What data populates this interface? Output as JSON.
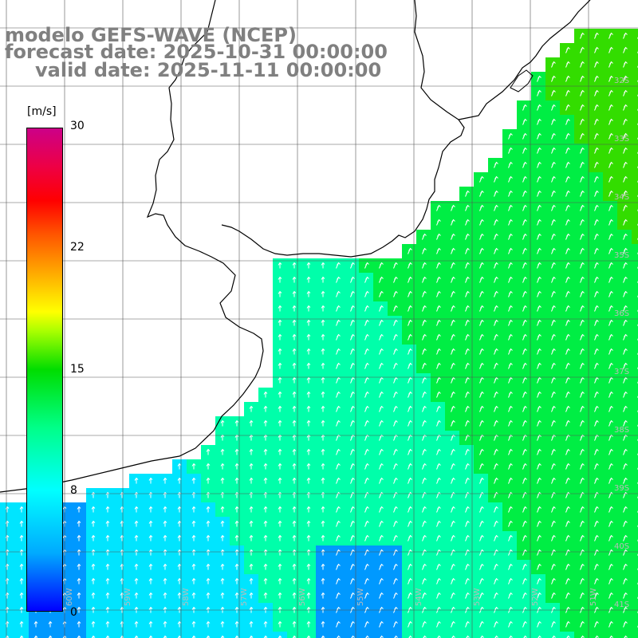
{
  "title": {
    "line1": "modelo GEFS-WAVE (NCEP)",
    "line2": "forecast date: 2025-10-31 00:00:00",
    "line3": "valid date: 2025-11-11 00:00:00"
  },
  "colorbar": {
    "unit": "[m/s]",
    "min": 0,
    "max": 30,
    "ticks": [
      "30",
      "22",
      "15",
      "8",
      "0"
    ]
  },
  "map": {
    "lon_labels": [
      "60W",
      "59W",
      "58W",
      "57W",
      "56W",
      "55W",
      "54W",
      "53W",
      "52W",
      "51W"
    ],
    "lat_labels": [
      "32S",
      "33S",
      "34S",
      "35S",
      "36S",
      "37S",
      "38S",
      "39S",
      "40S",
      "41S"
    ],
    "colors": {
      "land": "#ffffff",
      "grid": "#000000",
      "coast": "#000000",
      "arrows": "#ffffff"
    }
  }
}
